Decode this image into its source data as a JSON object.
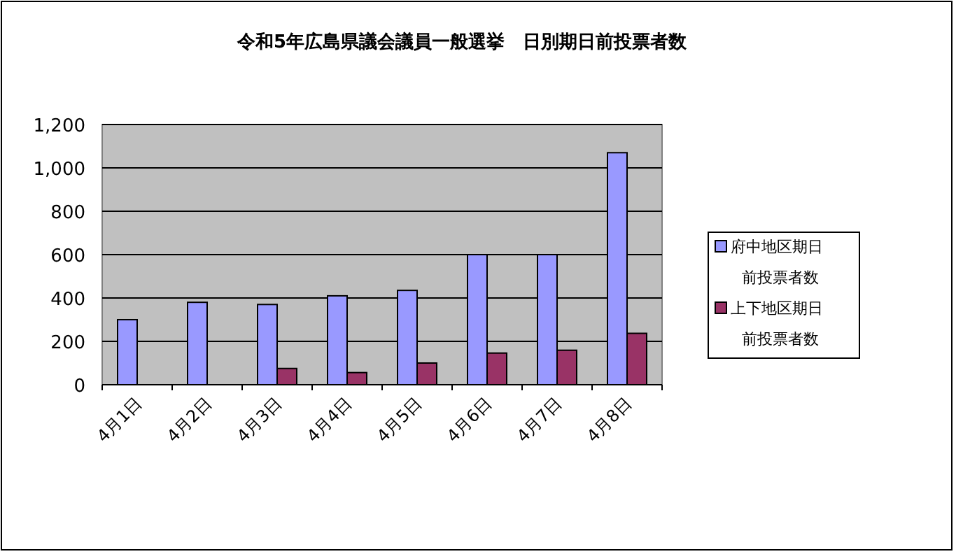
{
  "chart_data": {
    "type": "bar",
    "title": "令和5年広島県議会議員一般選挙　日別期日前投票者数",
    "categories": [
      "4月1日",
      "4月2日",
      "4月3日",
      "4月4日",
      "4月5日",
      "4月6日",
      "4月7日",
      "4月8日"
    ],
    "series": [
      {
        "name": "府中地区期日前投票者数",
        "color": "#9999ff",
        "values": [
          300,
          380,
          370,
          410,
          435,
          600,
          600,
          1070
        ]
      },
      {
        "name": "上下地区期日前投票者数",
        "color": "#993366",
        "values": [
          null,
          null,
          75,
          56,
          100,
          146,
          159,
          237
        ]
      }
    ],
    "ylim": [
      0,
      1200
    ],
    "yticks": [
      0,
      {
        "value": 200,
        "label": "200"
      },
      {
        "value": 400,
        "label": "400"
      },
      {
        "value": 600,
        "label": "600"
      },
      {
        "value": 800,
        "label": "800"
      },
      {
        "value": 1000,
        "label": "1,000"
      },
      {
        "value": 1200,
        "label": "1,200"
      }
    ],
    "grid": "y",
    "legend": "right"
  }
}
